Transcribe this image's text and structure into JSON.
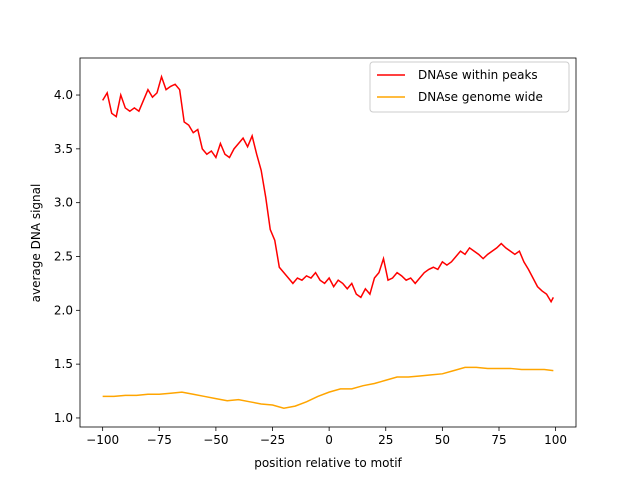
{
  "chart_data": {
    "type": "line",
    "xlabel": "position relative to motif",
    "ylabel": "average DNA signal",
    "xlim": [
      -110,
      109
    ],
    "ylim": [
      0.916,
      4.344
    ],
    "xticks": [
      {
        "value": -100,
        "label": "−100"
      },
      {
        "value": -75,
        "label": "−75"
      },
      {
        "value": -50,
        "label": "−50"
      },
      {
        "value": -25,
        "label": "−25"
      },
      0,
      25,
      50,
      75,
      100
    ],
    "yticks": [
      {
        "value": 1,
        "label": "1.0"
      },
      {
        "value": 1.5,
        "label": "1.5"
      },
      {
        "value": 2,
        "label": "2.0"
      },
      {
        "value": 2.5,
        "label": "2.5"
      },
      {
        "value": 3,
        "label": "3.0"
      },
      {
        "value": 3.5,
        "label": "3.5"
      },
      {
        "value": 4,
        "label": "4.0"
      }
    ],
    "legend": "upper right",
    "series": [
      {
        "name": "DNAse within peaks",
        "color": "#ff0000",
        "x": [
          -100,
          -98,
          -96,
          -94,
          -92,
          -90,
          -88,
          -86,
          -84,
          -82,
          -80,
          -78,
          -76,
          -74,
          -72,
          -70,
          -68,
          -66,
          -64,
          -62,
          -60,
          -58,
          -56,
          -54,
          -52,
          -50,
          -48,
          -46,
          -44,
          -42,
          -40,
          -38,
          -36,
          -34,
          -32,
          -30,
          -28,
          -26,
          -24,
          -22,
          -20,
          -18,
          -16,
          -14,
          -12,
          -10,
          -8,
          -6,
          -4,
          -2,
          0,
          2,
          4,
          6,
          8,
          10,
          12,
          14,
          16,
          18,
          20,
          22,
          24,
          26,
          28,
          30,
          32,
          34,
          36,
          38,
          40,
          42,
          44,
          46,
          48,
          50,
          52,
          54,
          56,
          58,
          60,
          62,
          64,
          66,
          68,
          70,
          72,
          74,
          76,
          78,
          80,
          82,
          84,
          86,
          88,
          90,
          92,
          94,
          96,
          98,
          99
        ],
        "values": [
          3.95,
          4.02,
          3.83,
          3.8,
          4.0,
          3.88,
          3.85,
          3.88,
          3.85,
          3.95,
          4.05,
          3.98,
          4.02,
          4.17,
          4.05,
          4.08,
          4.1,
          4.05,
          3.75,
          3.72,
          3.65,
          3.68,
          3.5,
          3.45,
          3.48,
          3.42,
          3.55,
          3.45,
          3.42,
          3.5,
          3.55,
          3.6,
          3.52,
          3.62,
          3.45,
          3.3,
          3.05,
          2.75,
          2.65,
          2.4,
          2.35,
          2.3,
          2.25,
          2.3,
          2.28,
          2.32,
          2.3,
          2.35,
          2.28,
          2.25,
          2.3,
          2.22,
          2.28,
          2.25,
          2.2,
          2.25,
          2.15,
          2.12,
          2.2,
          2.15,
          2.3,
          2.35,
          2.48,
          2.28,
          2.3,
          2.35,
          2.32,
          2.28,
          2.3,
          2.25,
          2.3,
          2.35,
          2.38,
          2.4,
          2.38,
          2.45,
          2.42,
          2.45,
          2.5,
          2.55,
          2.52,
          2.58,
          2.55,
          2.52,
          2.48,
          2.52,
          2.55,
          2.58,
          2.62,
          2.58,
          2.55,
          2.52,
          2.55,
          2.45,
          2.38,
          2.3,
          2.22,
          2.18,
          2.15,
          2.08,
          2.12
        ]
      },
      {
        "name": "DNAse genome wide",
        "color": "#ffa500",
        "x": [
          -100,
          -95,
          -90,
          -85,
          -80,
          -75,
          -70,
          -65,
          -60,
          -55,
          -50,
          -45,
          -40,
          -35,
          -30,
          -25,
          -20,
          -15,
          -10,
          -5,
          0,
          5,
          10,
          15,
          20,
          25,
          30,
          35,
          40,
          45,
          50,
          55,
          60,
          65,
          70,
          75,
          80,
          85,
          90,
          95,
          99
        ],
        "values": [
          1.2,
          1.2,
          1.21,
          1.21,
          1.22,
          1.22,
          1.23,
          1.24,
          1.22,
          1.2,
          1.18,
          1.16,
          1.17,
          1.15,
          1.13,
          1.12,
          1.09,
          1.11,
          1.15,
          1.2,
          1.24,
          1.27,
          1.27,
          1.3,
          1.32,
          1.35,
          1.38,
          1.38,
          1.39,
          1.4,
          1.41,
          1.44,
          1.47,
          1.47,
          1.46,
          1.46,
          1.46,
          1.45,
          1.45,
          1.45,
          1.44
        ]
      }
    ]
  }
}
